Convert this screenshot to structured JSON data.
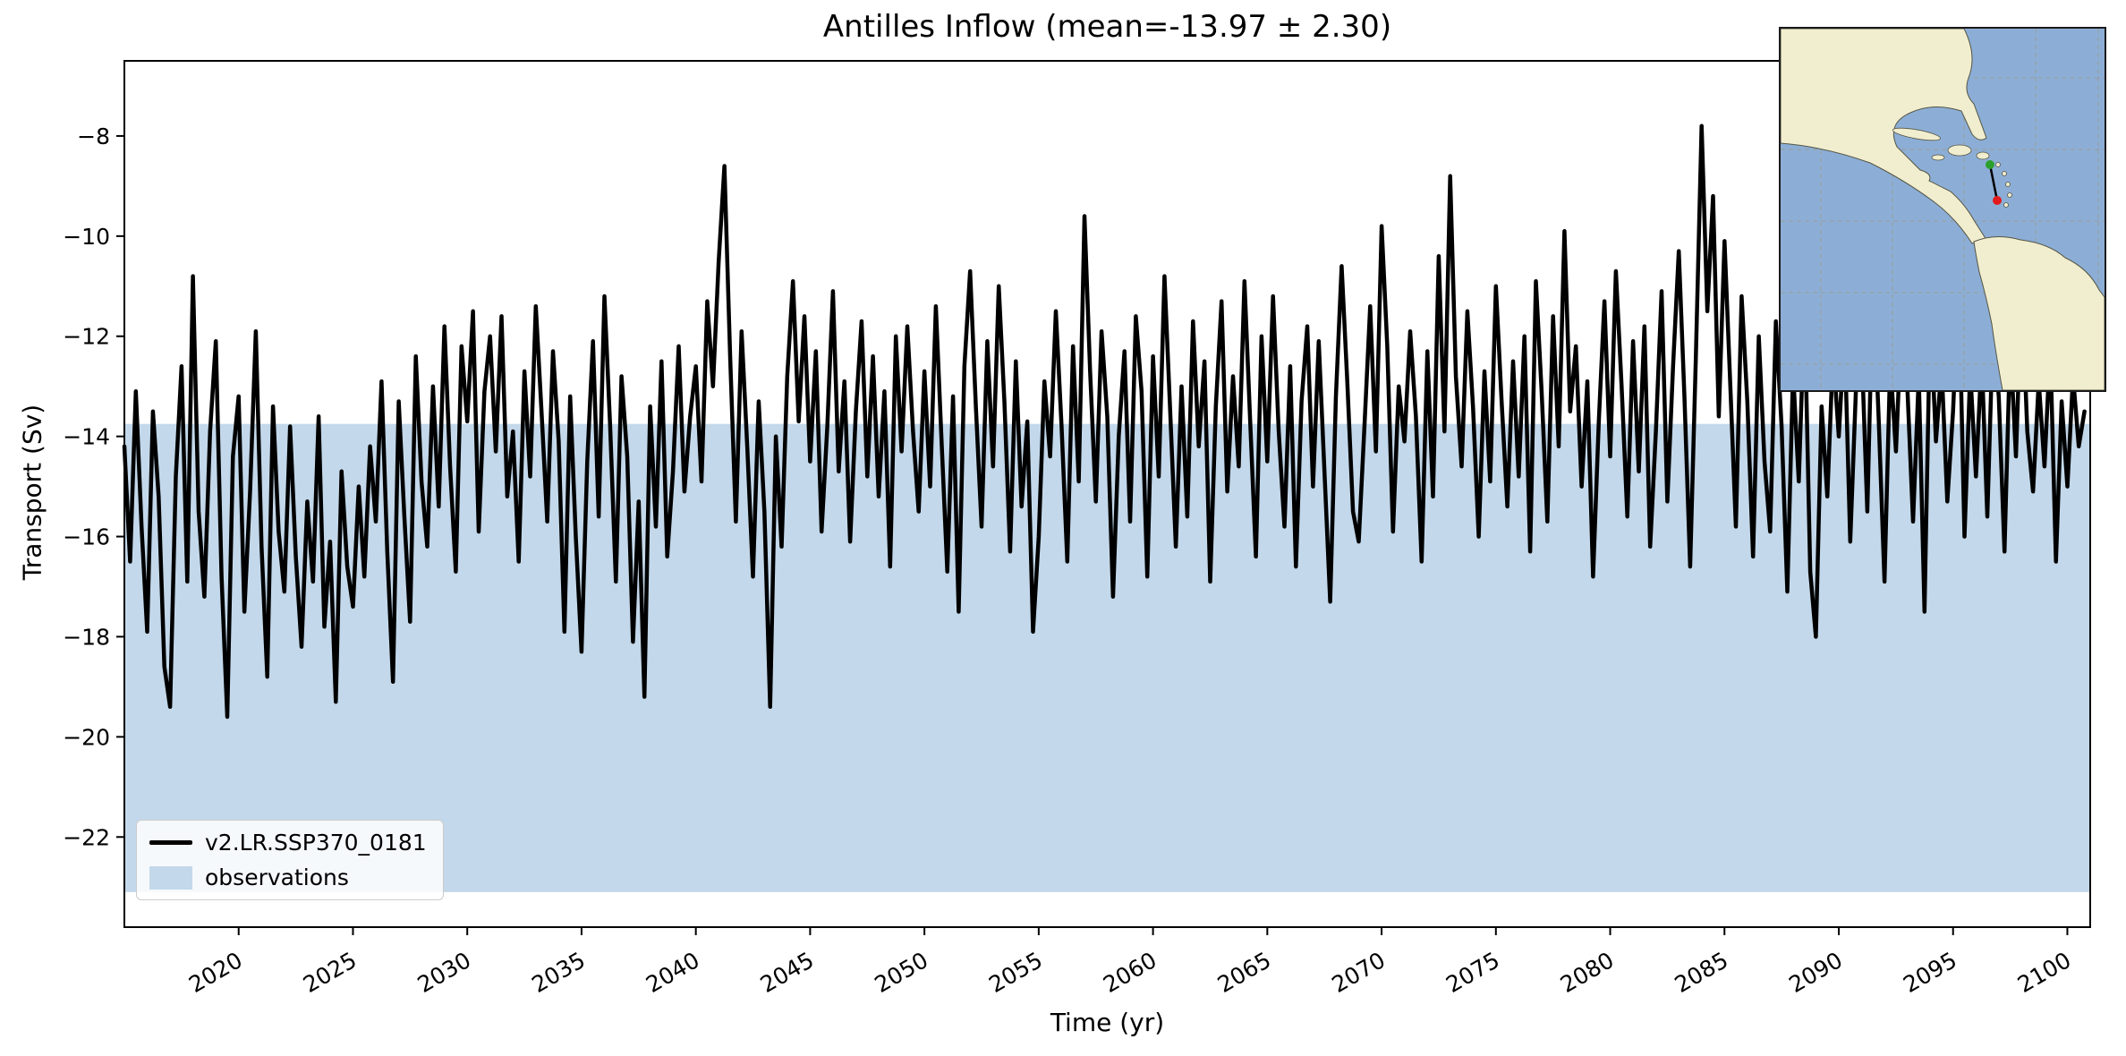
{
  "chart_data": {
    "type": "line",
    "title": "Antilles Inflow (mean=-13.97 ± 2.30)",
    "xlabel": "Time (yr)",
    "ylabel": "Transport (Sv)",
    "xlim": [
      2015,
      2101
    ],
    "ylim": [
      -23.8,
      -6.5
    ],
    "grid": false,
    "legend_position": "lower left",
    "xticks": [
      2020,
      2025,
      2030,
      2035,
      2040,
      2045,
      2050,
      2055,
      2060,
      2065,
      2070,
      2075,
      2080,
      2085,
      2090,
      2095,
      2100
    ],
    "xtick_labels": [
      "2020",
      "2025",
      "2030",
      "2035",
      "2040",
      "2045",
      "2050",
      "2055",
      "2060",
      "2065",
      "2070",
      "2075",
      "2080",
      "2085",
      "2090",
      "2095",
      "2100"
    ],
    "yticks": [
      -8,
      -10,
      -12,
      -14,
      -16,
      -18,
      -20,
      -22
    ],
    "ytick_labels": [
      "−8",
      "−10",
      "−12",
      "−14",
      "−16",
      "−18",
      "−20",
      "−22"
    ],
    "observations_band": {
      "label": "observations",
      "y_top": -13.75,
      "y_bottom": -23.1,
      "color": "#c3d8ea"
    },
    "series": [
      {
        "name": "v2.LR.SSP370_0181",
        "color": "#000000",
        "x_start": 2015.0,
        "x_step": 0.25,
        "values": [
          -14.2,
          -16.5,
          -13.1,
          -15.8,
          -17.9,
          -13.5,
          -15.2,
          -18.6,
          -19.4,
          -14.8,
          -12.6,
          -16.9,
          -10.8,
          -15.5,
          -17.2,
          -13.9,
          -12.1,
          -16.8,
          -19.6,
          -14.4,
          -13.2,
          -17.5,
          -15.1,
          -11.9,
          -16.2,
          -18.8,
          -13.4,
          -15.9,
          -17.1,
          -13.8,
          -16.4,
          -18.2,
          -15.3,
          -16.9,
          -13.6,
          -17.8,
          -16.1,
          -19.3,
          -14.7,
          -16.6,
          -17.4,
          -15.0,
          -16.8,
          -14.2,
          -15.7,
          -12.9,
          -16.3,
          -18.9,
          -13.3,
          -15.6,
          -17.7,
          -12.4,
          -14.9,
          -16.2,
          -13.0,
          -15.4,
          -11.8,
          -14.6,
          -16.7,
          -12.2,
          -13.7,
          -11.5,
          -15.9,
          -13.1,
          -12.0,
          -14.3,
          -11.6,
          -15.2,
          -13.9,
          -16.5,
          -12.7,
          -14.8,
          -11.4,
          -13.5,
          -15.7,
          -12.3,
          -14.1,
          -17.9,
          -13.2,
          -16.0,
          -18.3,
          -14.5,
          -12.1,
          -15.6,
          -11.2,
          -13.8,
          -16.9,
          -12.8,
          -14.4,
          -18.1,
          -15.3,
          -19.2,
          -13.4,
          -15.8,
          -12.5,
          -16.4,
          -14.7,
          -12.2,
          -15.1,
          -13.6,
          -12.6,
          -14.9,
          -11.3,
          -13.0,
          -10.5,
          -8.6,
          -12.4,
          -15.7,
          -11.9,
          -14.2,
          -16.8,
          -13.3,
          -15.5,
          -19.4,
          -14.0,
          -16.2,
          -12.8,
          -10.9,
          -13.7,
          -11.6,
          -14.5,
          -12.3,
          -15.9,
          -13.8,
          -11.1,
          -14.7,
          -12.9,
          -16.1,
          -13.5,
          -11.7,
          -14.8,
          -12.4,
          -15.2,
          -13.1,
          -16.6,
          -12.0,
          -14.3,
          -11.8,
          -13.9,
          -15.5,
          -12.7,
          -15.0,
          -11.4,
          -14.1,
          -16.7,
          -13.2,
          -17.5,
          -12.6,
          -10.7,
          -13.4,
          -15.8,
          -12.1,
          -14.6,
          -11.0,
          -13.3,
          -16.3,
          -12.5,
          -15.4,
          -13.7,
          -17.9,
          -16.0,
          -12.9,
          -14.4,
          -11.5,
          -13.8,
          -16.5,
          -12.2,
          -14.9,
          -9.6,
          -12.7,
          -15.3,
          -11.9,
          -13.6,
          -17.2,
          -14.0,
          -12.3,
          -15.7,
          -11.6,
          -13.1,
          -16.8,
          -12.4,
          -14.8,
          -10.8,
          -13.5,
          -16.2,
          -13.0,
          -15.6,
          -11.7,
          -14.2,
          -12.5,
          -16.9,
          -13.4,
          -11.3,
          -15.1,
          -12.8,
          -14.6,
          -10.9,
          -13.7,
          -16.4,
          -12.0,
          -14.5,
          -11.2,
          -13.9,
          -15.8,
          -12.6,
          -16.6,
          -13.3,
          -11.8,
          -15.0,
          -12.1,
          -14.7,
          -17.3,
          -13.2,
          -10.6,
          -12.9,
          -15.5,
          -16.1,
          -13.8,
          -11.4,
          -14.3,
          -9.8,
          -12.2,
          -15.9,
          -13.0,
          -14.1,
          -11.9,
          -13.6,
          -16.5,
          -12.3,
          -15.2,
          -10.4,
          -13.9,
          -8.8,
          -12.8,
          -14.6,
          -11.5,
          -13.4,
          -16.0,
          -12.7,
          -14.9,
          -11.0,
          -13.3,
          -15.4,
          -12.5,
          -14.8,
          -12.0,
          -16.3,
          -10.9,
          -13.1,
          -15.7,
          -11.6,
          -14.2,
          -9.9,
          -13.5,
          -12.2,
          -15.0,
          -12.9,
          -16.8,
          -13.7,
          -11.3,
          -14.4,
          -10.7,
          -13.0,
          -15.6,
          -12.1,
          -14.7,
          -11.8,
          -16.2,
          -13.9,
          -11.1,
          -15.3,
          -12.6,
          -10.3,
          -13.2,
          -16.6,
          -12.4,
          -7.8,
          -11.5,
          -9.2,
          -13.6,
          -10.1,
          -12.9,
          -15.8,
          -11.2,
          -13.3,
          -16.4,
          -12.0,
          -14.5,
          -15.9,
          -11.7,
          -13.8,
          -17.1,
          -12.7,
          -14.9,
          -11.4,
          -16.7,
          -18.0,
          -13.4,
          -15.2,
          -12.3,
          -14.0,
          -11.9,
          -16.1,
          -13.1,
          -12.2,
          -15.5,
          -10.8,
          -13.7,
          -16.9,
          -12.5,
          -14.3,
          -11.6,
          -13.0,
          -15.7,
          -12.8,
          -17.5,
          -11.5,
          -14.1,
          -12.6,
          -15.3,
          -13.5,
          -10.9,
          -16.0,
          -12.7,
          -14.8,
          -12.4,
          -15.6,
          -11.8,
          -13.2,
          -16.3,
          -12.1,
          -14.4,
          -11.0,
          -13.9,
          -15.1,
          -12.9,
          -14.6,
          -12.2,
          -16.5,
          -13.3,
          -15.0,
          -12.8,
          -14.2,
          -13.5
        ]
      }
    ]
  },
  "legend": [
    {
      "label": "v2.LR.SSP370_0181",
      "type": "line",
      "color": "#000000"
    },
    {
      "label": "observations",
      "type": "patch",
      "color": "#c3d8ea"
    }
  ],
  "inset_map": {
    "ocean_color": "#8caed6",
    "land_color": "#f1edcf",
    "gridline_color": "#9a9a8c",
    "coast_color": "#555544",
    "section_line_color": "#000000",
    "start_marker_color": "#2ca02c",
    "end_marker_color": "#e41a1c"
  }
}
